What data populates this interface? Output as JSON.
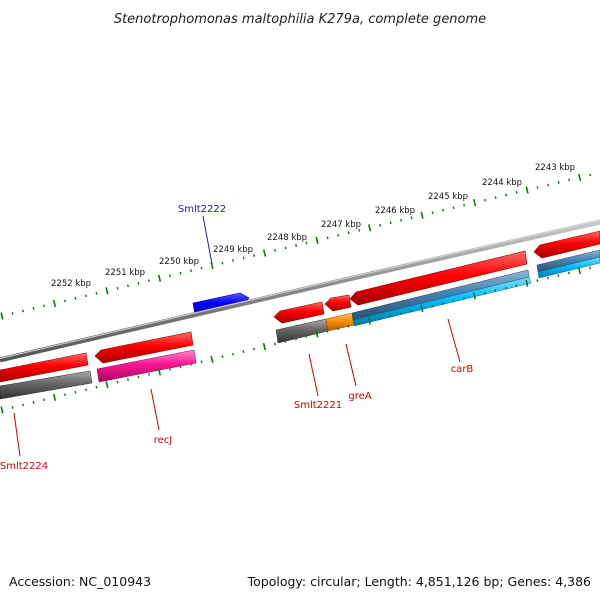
{
  "title": "Stenotrophomonas maltophilia K279a, complete genome",
  "ticks": [
    {
      "label": "2243 kbp"
    },
    {
      "label": "2244 kbp"
    },
    {
      "label": "2245 kbp"
    },
    {
      "label": "2246 kbp"
    },
    {
      "label": "2247 kbp"
    },
    {
      "label": "2248 kbp"
    },
    {
      "label": "2249 kbp"
    },
    {
      "label": "2250 kbp"
    },
    {
      "label": "2251 kbp"
    },
    {
      "label": "2252 kbp"
    }
  ],
  "gene_labels": {
    "smlt2222": "Smlt2222",
    "smlt2224": "Smlt2224",
    "recj": "recJ",
    "smlt2221": "Smlt2221",
    "grea": "greA",
    "carb": "carB"
  },
  "colors": {
    "gene_red": "#ff0000",
    "gene_blue": "#0000ff",
    "cds_magenta": "#ff1493",
    "cds_gray": "#555555",
    "cds_orange": "#ff8c00",
    "cds_cyan": "#00bfff",
    "cds_steel": "#4682b4",
    "backbone": "#888888",
    "tick_green": "#117711",
    "label_red": "#cc0000",
    "label_blue": "#1a1aaa"
  },
  "footer": {
    "accession": "Accession: NC_010943",
    "topology": "Topology: circular; Length: 4,851,126 bp; Genes: 4,386"
  }
}
